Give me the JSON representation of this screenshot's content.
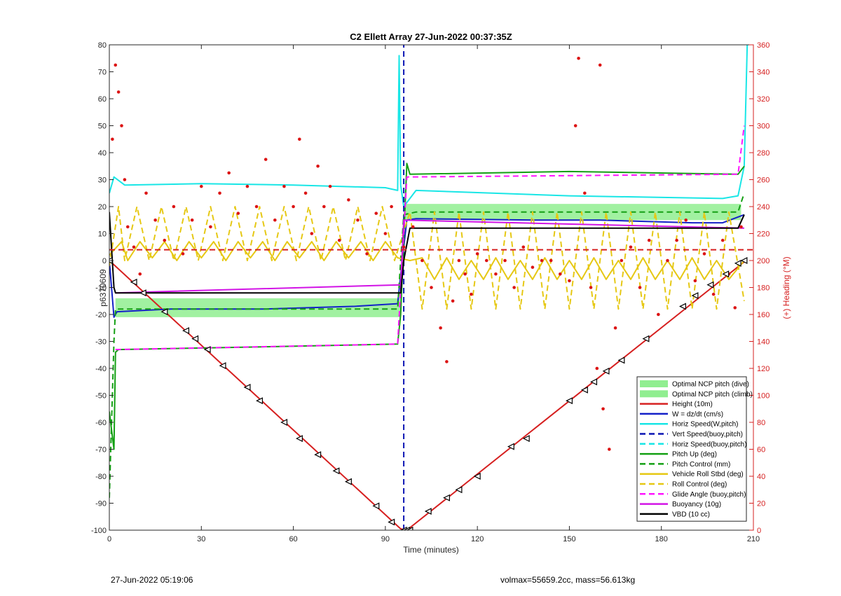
{
  "footer": {
    "timestamp": "27-Jun-2022 05:19:06",
    "vol_mass": "volmax=55659.2cc, mass=56.613kg"
  },
  "chart_data": {
    "type": "line",
    "title": "C2 Ellett Array 27-Jun-2022 00:37:35Z",
    "xlabel": "Time (minutes)",
    "ylabel_left": "p6370609",
    "ylabel_right": "(+) Heading (°M)",
    "xlim": [
      0,
      210
    ],
    "ylim_left": [
      -100,
      80
    ],
    "ylim_right": [
      0,
      360
    ],
    "xticks": [
      0,
      30,
      60,
      90,
      120,
      150,
      180,
      210
    ],
    "yticks_left": [
      -100,
      -90,
      -80,
      -70,
      -60,
      -50,
      -40,
      -30,
      -20,
      -10,
      0,
      10,
      20,
      30,
      40,
      50,
      60,
      70,
      80
    ],
    "yticks_right": [
      0,
      20,
      40,
      60,
      80,
      100,
      120,
      140,
      160,
      180,
      200,
      220,
      240,
      260,
      280,
      300,
      320,
      340,
      360
    ],
    "grid": false,
    "legend_position": "bottom-right",
    "colors": {
      "ncp": "#90ee90",
      "height": "#d62020",
      "w": "#1420c8",
      "horiz": "#19e6e6",
      "vert_buoy": "#0a14b4",
      "pitch": "#14a014",
      "roll": "#e6c814",
      "glide": "#ff14ff",
      "buoy": "#d214e6",
      "vbd": "#000000",
      "heading": "#dc1414",
      "right_axis": "#d62020"
    },
    "legend": [
      {
        "label": "Optimal NCP pitch (dive)",
        "kind": "patch",
        "color": "#90ee90"
      },
      {
        "label": "Optimal NCP pitch (climb)",
        "kind": "patch",
        "color": "#90ee90"
      },
      {
        "label": "Height (10m)",
        "kind": "solid",
        "color": "#d62020"
      },
      {
        "label": "W = dz/dt (cm/s)",
        "kind": "solid",
        "color": "#1420c8"
      },
      {
        "label": "Horiz Speed(W,pitch)",
        "kind": "solid",
        "color": "#19e6e6"
      },
      {
        "label": "Vert Speed(buoy,pitch)",
        "kind": "dashed",
        "color": "#0a14b4"
      },
      {
        "label": "Horiz Speed(buoy,pitch)",
        "kind": "dashed",
        "color": "#19e6e6"
      },
      {
        "label": "Pitch Up (deg)",
        "kind": "solid",
        "color": "#14a014"
      },
      {
        "label": "Pitch Control (mm)",
        "kind": "dashed",
        "color": "#14a014"
      },
      {
        "label": "Vehicle Roll Stbd (deg)",
        "kind": "solid",
        "color": "#e6c814"
      },
      {
        "label": "Roll Control (deg)",
        "kind": "dashed",
        "color": "#e6c814"
      },
      {
        "label": "Glide Angle (buoy,pitch)",
        "kind": "dashed",
        "color": "#ff14ff"
      },
      {
        "label": "Buoyancy (10g)",
        "kind": "solid",
        "color": "#d214e6"
      },
      {
        "label": "VBD (10 cc)",
        "kind": "solid",
        "color": "#000000"
      }
    ],
    "ncp_bands": [
      {
        "name": "Optimal NCP pitch (dive)",
        "x": [
          2,
          95
        ],
        "y": [
          -21,
          -14
        ]
      },
      {
        "name": "Optimal NCP pitch (climb)",
        "x": [
          96,
          206
        ],
        "y": [
          15,
          21
        ]
      }
    ],
    "series": [
      {
        "name": "Height (10m)",
        "style": "solid",
        "color": "#d62020",
        "x": [
          0,
          95,
          97,
          207
        ],
        "y": [
          0,
          -99.5,
          -100,
          -0.5
        ]
      },
      {
        "name": "W = dz/dt (cm/s)",
        "style": "solid",
        "color": "#1420c8",
        "x": [
          0,
          1.5,
          2.5,
          20,
          50,
          80,
          94,
          95.5,
          97,
          100,
          140,
          160,
          190,
          200,
          207
        ],
        "y": [
          0,
          -21,
          -19,
          -18,
          -18,
          -17,
          -16,
          0,
          15,
          15.5,
          15,
          15,
          14,
          14,
          17
        ]
      },
      {
        "name": "Horiz Speed(W,pitch)",
        "style": "solid",
        "color": "#19e6e6",
        "x": [
          0,
          1.5,
          5,
          30,
          60,
          90,
          94,
          94.5,
          95,
          96,
          100,
          150,
          200,
          205,
          207,
          208
        ],
        "y": [
          25,
          31,
          28,
          28.5,
          28,
          27,
          26,
          76,
          28,
          20,
          26,
          24,
          23,
          24,
          35,
          80
        ]
      },
      {
        "name": "Vert Speed(buoy,pitch)",
        "style": "dashed",
        "color": "#0a14b4",
        "x": [
          96,
          96
        ],
        "y": [
          -100,
          80
        ]
      },
      {
        "name": "Pitch Up (deg)",
        "style": "solid",
        "color": "#14a014",
        "x": [
          0,
          1.5,
          2,
          3,
          50,
          94,
          95,
          97,
          98,
          150,
          205,
          207
        ],
        "y": [
          -56,
          -70,
          -34,
          -33,
          -32,
          -31,
          -20,
          36,
          32,
          33,
          32,
          35
        ]
      },
      {
        "name": "Pitch Control (mm)",
        "style": "dashed",
        "color": "#14a014",
        "x": [
          0,
          1.5,
          2,
          94,
          95,
          96,
          100,
          205,
          207
        ],
        "y": [
          -88,
          -30,
          -18,
          -18,
          0,
          17,
          18,
          18,
          25
        ]
      },
      {
        "name": "Vehicle Roll Stbd (deg)",
        "style": "solid",
        "color": "#e6c814",
        "x": [
          0,
          4,
          6,
          10,
          14,
          18,
          22,
          26,
          30,
          34,
          38,
          42,
          46,
          50,
          54,
          58,
          62,
          66,
          70,
          74,
          78,
          82,
          86,
          90,
          94,
          98,
          102,
          106,
          110,
          114,
          118,
          122,
          126,
          130,
          134,
          138,
          142,
          146,
          150,
          154,
          158,
          162,
          166,
          170,
          174,
          178,
          182,
          186,
          190,
          194,
          198,
          202,
          207
        ],
        "y": [
          2,
          7,
          0,
          7,
          1,
          7,
          0,
          7,
          1,
          7,
          0,
          7,
          1,
          7,
          0,
          7,
          1,
          7,
          0,
          7,
          1,
          7,
          0,
          7,
          1,
          0,
          1,
          -7,
          1,
          -7,
          0,
          -7,
          1,
          -7,
          0,
          -7,
          1,
          -7,
          0,
          -7,
          1,
          -7,
          0,
          -7,
          1,
          -7,
          0,
          -7,
          1,
          -7,
          0,
          -7,
          0
        ]
      },
      {
        "name": "Roll Control (deg)",
        "style": "dashed",
        "color": "#e6c814",
        "x": [
          0,
          3,
          5,
          9,
          13,
          17,
          21,
          25,
          29,
          33,
          37,
          41,
          45,
          49,
          53,
          57,
          61,
          65,
          69,
          73,
          77,
          81,
          85,
          89,
          93,
          98,
          102,
          106,
          110,
          114,
          118,
          122,
          126,
          130,
          134,
          138,
          142,
          146,
          150,
          154,
          158,
          162,
          166,
          170,
          174,
          178,
          182,
          186,
          190,
          194,
          198,
          202,
          207
        ],
        "y": [
          -2,
          20,
          0,
          20,
          0,
          20,
          0,
          20,
          0,
          20,
          0,
          20,
          0,
          20,
          0,
          20,
          0,
          20,
          0,
          20,
          0,
          20,
          0,
          20,
          0,
          18,
          -18,
          18,
          -18,
          18,
          -18,
          18,
          -18,
          18,
          -18,
          18,
          -18,
          18,
          -18,
          18,
          -18,
          18,
          -18,
          18,
          -18,
          18,
          -18,
          18,
          -18,
          18,
          -18,
          18,
          -15
        ]
      },
      {
        "name": "Glide Angle (buoy,pitch)",
        "style": "dashed",
        "color": "#ff14ff",
        "x": [
          2,
          94,
          97,
          205,
          207
        ],
        "y": [
          -33,
          -31,
          31,
          32,
          50
        ]
      },
      {
        "name": "Buoyancy (10g)",
        "style": "solid",
        "color": "#d214e6",
        "x": [
          2,
          95,
          96,
          207
        ],
        "y": [
          -12,
          -9,
          15,
          12
        ]
      },
      {
        "name": "VBD (10 cc)",
        "style": "solid",
        "color": "#000000",
        "x": [
          0,
          1.5,
          2,
          95,
          96,
          98,
          205,
          207
        ],
        "y": [
          18,
          -10,
          -12,
          -12,
          0,
          12,
          12,
          17
        ]
      },
      {
        "name": "Heading",
        "style": "markers",
        "color": "#dc1414",
        "axis": "right",
        "x": [
          1,
          2,
          3,
          4,
          5,
          6,
          8,
          10,
          12,
          15,
          18,
          21,
          24,
          27,
          30,
          33,
          36,
          39,
          42,
          45,
          48,
          51,
          54,
          57,
          60,
          62,
          64,
          66,
          68,
          70,
          72,
          75,
          78,
          81,
          84,
          87,
          90,
          92,
          96,
          99,
          102,
          105,
          108,
          110,
          112,
          114,
          116,
          118,
          120,
          123,
          126,
          129,
          132,
          135,
          138,
          141,
          144,
          147,
          150,
          152,
          153,
          155,
          157,
          159,
          160,
          161,
          163,
          165,
          167,
          170,
          173,
          176,
          179,
          182,
          185,
          188,
          191,
          194,
          197,
          200,
          202,
          204,
          206
        ],
        "y": [
          290,
          345,
          325,
          300,
          260,
          225,
          210,
          190,
          250,
          230,
          215,
          240,
          205,
          230,
          255,
          225,
          250,
          265,
          235,
          255,
          240,
          275,
          230,
          255,
          240,
          290,
          250,
          220,
          270,
          240,
          255,
          215,
          245,
          230,
          205,
          235,
          220,
          240,
          210,
          225,
          200,
          180,
          150,
          125,
          170,
          200,
          190,
          175,
          205,
          200,
          190,
          200,
          180,
          210,
          195,
          200,
          200,
          190,
          185,
          300,
          350,
          250,
          180,
          120,
          345,
          90,
          60,
          150,
          200,
          210,
          180,
          215,
          160,
          200,
          215,
          230,
          185,
          205,
          175,
          215,
          190,
          165,
          225
        ]
      },
      {
        "name": "Heading reference",
        "style": "dashed",
        "color": "#d62020",
        "axis": "right",
        "x": [
          0,
          210
        ],
        "y": [
          208,
          208
        ]
      }
    ],
    "markers": {
      "name": "Height samples",
      "symbol": "triangle",
      "color": "#000000",
      "x": [
        0,
        8,
        11,
        18,
        25,
        28,
        32,
        37,
        45,
        49,
        57,
        62,
        68,
        74,
        78,
        87,
        92,
        96,
        97,
        98,
        104,
        110,
        114,
        120,
        131,
        136,
        150,
        155,
        158,
        162,
        167,
        175,
        187,
        191,
        196,
        201,
        205,
        207
      ],
      "y": [
        0,
        -8,
        -12,
        -19,
        -26,
        -29,
        -33,
        -39,
        -47,
        -52,
        -60,
        -66,
        -72,
        -78,
        -82,
        -91,
        -97,
        -100,
        -100,
        -100,
        -93,
        -88,
        -85,
        -80,
        -69,
        -66,
        -52,
        -48,
        -45,
        -41,
        -37,
        -29,
        -17,
        -13,
        -9,
        -5,
        -1,
        0
      ]
    }
  }
}
